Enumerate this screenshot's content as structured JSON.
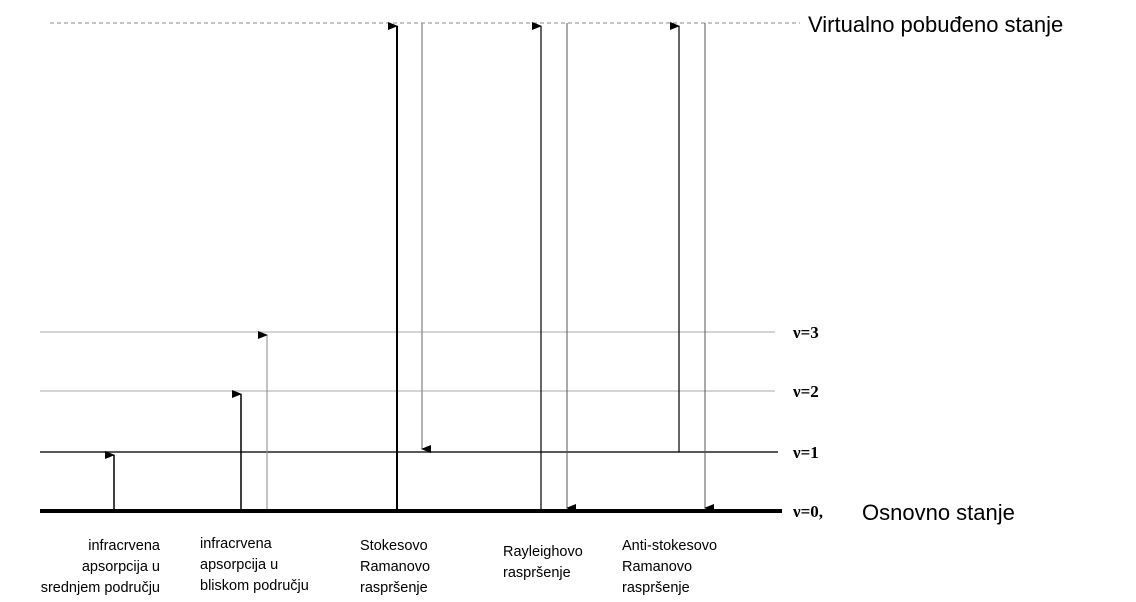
{
  "levels": {
    "virtual": "Virtualno pobuđeno stanje",
    "v3": "ν=3",
    "v2": "ν=2",
    "v1": "ν=1",
    "v0": "ν=0,",
    "ground": "Osnovno stanje"
  },
  "processes": [
    {
      "lines": [
        "infracrvena",
        "apsorpcija u",
        "srednjem području"
      ]
    },
    {
      "lines": [
        "infracrvena",
        "apsorpcija u",
        "bliskom području"
      ]
    },
    {
      "lines": [
        "Stokesovo",
        "Ramanovo",
        "raspršenje"
      ]
    },
    {
      "lines": [
        "Rayleighovo",
        "raspršenje"
      ]
    },
    {
      "lines": [
        "Anti-stokesovo",
        "Ramanovo",
        "raspršenje"
      ]
    }
  ]
}
